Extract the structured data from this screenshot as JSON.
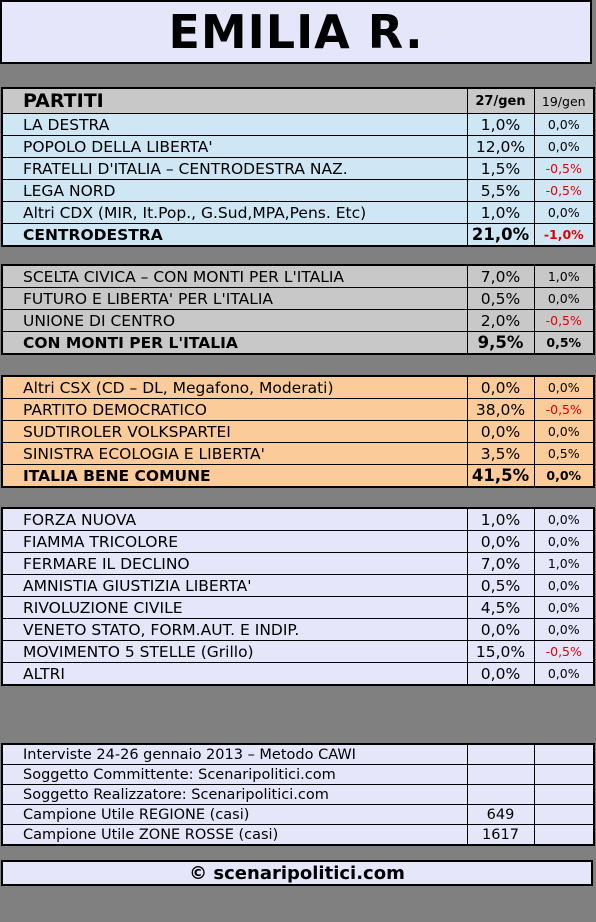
{
  "title": "EMILIA R.",
  "header": {
    "party_col": "PARTITI",
    "current_col": "27/gen",
    "prev_col": "19/gen"
  },
  "groups": [
    {
      "rows": [
        {
          "name": "LA DESTRA",
          "value": "1,0%",
          "delta": "0,0%"
        },
        {
          "name": "POPOLO DELLA LIBERTA'",
          "value": "12,0%",
          "delta": "0,0%"
        },
        {
          "name": "FRATELLI D'ITALIA – CENTRODESTRA NAZ.",
          "value": "1,5%",
          "delta": "-0,5%"
        },
        {
          "name": "LEGA NORD",
          "value": "5,5%",
          "delta": "-0,5%"
        },
        {
          "name": "Altri CDX (MIR, It.Pop., G.Sud,MPA,Pens. Etc)",
          "value": "1,0%",
          "delta": "0,0%"
        }
      ],
      "total": {
        "name": "CENTRODESTRA",
        "value": "21,0%",
        "delta": "-1,0%"
      }
    },
    {
      "rows": [
        {
          "name": "SCELTA CIVICA – CON MONTI PER L'ITALIA",
          "value": "7,0%",
          "delta": "1,0%"
        },
        {
          "name": "FUTURO E LIBERTA' PER L'ITALIA",
          "value": "0,5%",
          "delta": "0,0%"
        },
        {
          "name": "UNIONE DI CENTRO",
          "value": "2,0%",
          "delta": "-0,5%"
        }
      ],
      "total": {
        "name": "CON MONTI PER L'ITALIA",
        "value": "9,5%",
        "delta": "0,5%"
      }
    },
    {
      "rows": [
        {
          "name": "Altri CSX (CD – DL, Megafono, Moderati)",
          "value": "0,0%",
          "delta": "0,0%"
        },
        {
          "name": "PARTITO DEMOCRATICO",
          "value": "38,0%",
          "delta": "-0,5%"
        },
        {
          "name": "SUDTIROLER VOLKSPARTEI",
          "value": "0,0%",
          "delta": "0,0%"
        },
        {
          "name": "SINISTRA ECOLOGIA E LIBERTA'",
          "value": "3,5%",
          "delta": "0,5%"
        }
      ],
      "total": {
        "name": "ITALIA BENE COMUNE",
        "value": "41,5%",
        "delta": "0,0%"
      }
    },
    {
      "rows": [
        {
          "name": "FORZA NUOVA",
          "value": "1,0%",
          "delta": "0,0%"
        },
        {
          "name": "FIAMMA TRICOLORE",
          "value": "0,0%",
          "delta": "0,0%"
        },
        {
          "name": "FERMARE IL DECLINO",
          "value": "7,0%",
          "delta": "1,0%"
        },
        {
          "name": "AMNISTIA GIUSTIZIA LIBERTA'",
          "value": "0,5%",
          "delta": "0,0%"
        },
        {
          "name": "RIVOLUZIONE CIVILE",
          "value": "4,5%",
          "delta": "0,0%"
        },
        {
          "name": "VENETO STATO, FORM.AUT. E INDIP.",
          "value": "0,0%",
          "delta": "0,0%"
        },
        {
          "name": "MOVIMENTO 5 STELLE (Grillo)",
          "value": "15,0%",
          "delta": "-0,5%"
        },
        {
          "name": "ALTRI",
          "value": "0,0%",
          "delta": "0,0%"
        }
      ]
    }
  ],
  "info": [
    {
      "label": "Interviste 24-26 gennaio 2013 – Metodo CAWI",
      "value": ""
    },
    {
      "label": "Soggetto Committente: Scenaripolitici.com",
      "value": ""
    },
    {
      "label": "Soggetto Realizzatore: Scenaripolitici.com",
      "value": ""
    },
    {
      "label": "Campione Utile REGIONE (casi)",
      "value": "649"
    },
    {
      "label": "Campione Utile ZONE ROSSE (casi)",
      "value": "1617"
    }
  ],
  "footer": "© scenaripolitici.com",
  "colors": {
    "centrodestra": "#cfe6f5",
    "monti": "#c8c8c8",
    "csx": "#fbcc9a",
    "others": "#e6e6fa",
    "negative": "#e00000"
  }
}
